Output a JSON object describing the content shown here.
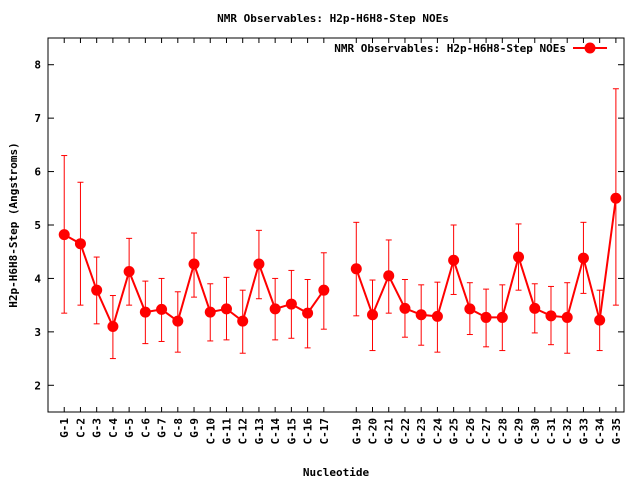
{
  "chart_data": {
    "type": "line",
    "title": "NMR Observables: H2p-H6H8-Step NOEs",
    "xlabel": "Nucleotide",
    "ylabel": "H2p-H6H8-Step (Angstroms)",
    "ylim": [
      1.5,
      8.5
    ],
    "yticks": [
      2,
      3,
      4,
      5,
      6,
      7,
      8
    ],
    "grid": false,
    "legend_position": "top-right",
    "color": "#ff0000",
    "categories": [
      "G-1",
      "C-2",
      "G-3",
      "C-4",
      "G-5",
      "C-6",
      "G-7",
      "C-8",
      "G-9",
      "C-10",
      "G-11",
      "C-12",
      "G-13",
      "C-14",
      "G-15",
      "C-16",
      "C-17",
      "G-19",
      "C-20",
      "G-21",
      "C-22",
      "G-23",
      "C-24",
      "G-25",
      "C-26",
      "C-27",
      "C-28",
      "G-29",
      "C-30",
      "C-31",
      "C-32",
      "G-33",
      "C-34",
      "G-35"
    ],
    "x": [
      1,
      2,
      3,
      4,
      5,
      6,
      7,
      8,
      9,
      10,
      11,
      12,
      13,
      14,
      15,
      16,
      17,
      19,
      20,
      21,
      22,
      23,
      24,
      25,
      26,
      27,
      28,
      29,
      30,
      31,
      32,
      33,
      34,
      35
    ],
    "series": [
      {
        "name": "NMR Observables: H2p-H6H8-Step NOEs",
        "values": [
          4.82,
          4.65,
          3.78,
          3.1,
          4.13,
          3.37,
          3.42,
          3.2,
          4.27,
          3.37,
          3.43,
          3.2,
          4.27,
          3.43,
          3.52,
          3.35,
          3.78,
          4.18,
          3.32,
          4.05,
          3.44,
          3.32,
          3.29,
          4.34,
          3.43,
          3.27,
          3.27,
          4.4,
          3.44,
          3.3,
          3.27,
          4.38,
          3.22,
          5.5
        ],
        "err_low": [
          3.35,
          3.5,
          3.15,
          2.5,
          3.5,
          2.78,
          2.82,
          2.62,
          3.65,
          2.83,
          2.85,
          2.6,
          3.62,
          2.85,
          2.88,
          2.7,
          3.05,
          3.3,
          2.65,
          3.35,
          2.9,
          2.75,
          2.62,
          3.7,
          2.95,
          2.72,
          2.65,
          3.78,
          2.98,
          2.76,
          2.6,
          3.72,
          2.65,
          3.5
        ],
        "err_high": [
          6.3,
          5.8,
          4.4,
          3.68,
          4.75,
          3.95,
          4.0,
          3.75,
          4.85,
          3.9,
          4.02,
          3.78,
          4.9,
          4.0,
          4.15,
          3.98,
          4.48,
          5.05,
          3.97,
          4.72,
          3.98,
          3.88,
          3.93,
          5.0,
          3.92,
          3.8,
          3.88,
          5.02,
          3.9,
          3.85,
          3.92,
          5.05,
          3.78,
          7.55
        ]
      }
    ]
  }
}
